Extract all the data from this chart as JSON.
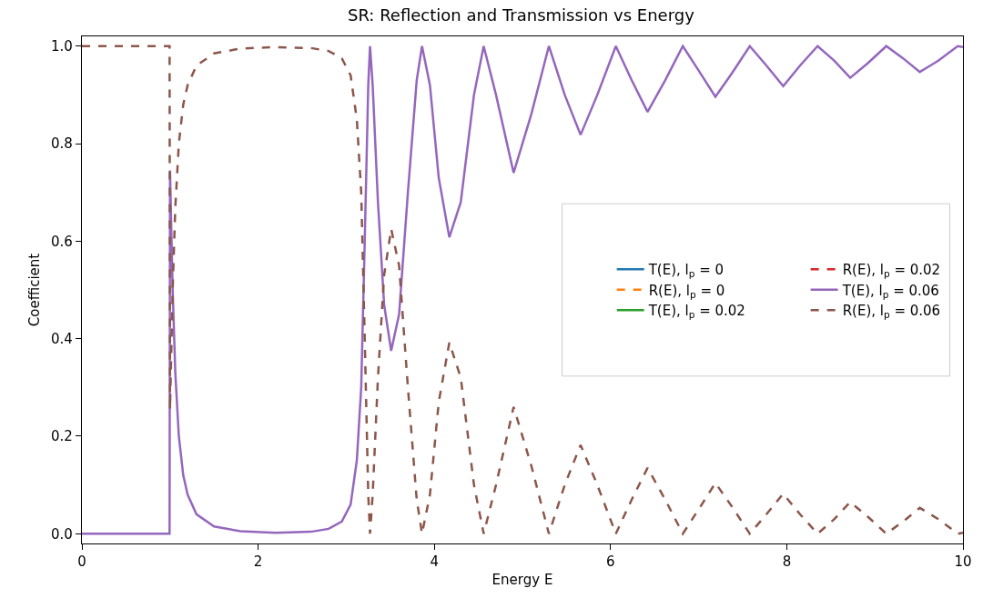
{
  "chart_data": {
    "type": "line",
    "title": "SR: Reflection and Transmission vs Energy",
    "xlabel": "Energy E",
    "ylabel": "Coefficient",
    "x": [
      0,
      0.995,
      1.0,
      1.03,
      1.06,
      1.1,
      1.15,
      1.2,
      1.3,
      1.5,
      1.8,
      2.2,
      2.6,
      2.8,
      2.95,
      3.05,
      3.12,
      3.17,
      3.21,
      3.25,
      3.27,
      3.3,
      3.36,
      3.43,
      3.51,
      3.6,
      3.7,
      3.8,
      3.86,
      3.95,
      4.05,
      4.17,
      4.3,
      4.45,
      4.56,
      4.7,
      4.9,
      5.1,
      5.3,
      5.48,
      5.66,
      5.85,
      6.06,
      6.24,
      6.42,
      6.62,
      6.82,
      7.0,
      7.19,
      7.38,
      7.58,
      7.77,
      7.96,
      8.15,
      8.35,
      8.54,
      8.72,
      8.92,
      9.13,
      9.32,
      9.51,
      9.72,
      9.94,
      10
    ],
    "series": [
      {
        "name": "T(E), l$_{p}$ = 0",
        "color": "#1f77b4",
        "line_style": "solid",
        "values": [
          null,
          null,
          null,
          null,
          null,
          null,
          null,
          null,
          null,
          null,
          null,
          null,
          null,
          null,
          null,
          null,
          null,
          null,
          null,
          null,
          null,
          null,
          null,
          null,
          null,
          null,
          null,
          null,
          null,
          null,
          null,
          null,
          null,
          null,
          null,
          null,
          null,
          null,
          null,
          null,
          null,
          null,
          null,
          null,
          null,
          null,
          null,
          null,
          null,
          null,
          null,
          null,
          null,
          null,
          null,
          null,
          null,
          null,
          null,
          null,
          null,
          null,
          null,
          null
        ]
      },
      {
        "name": "R(E), l$_{p}$ = 0",
        "color": "#ff7f0e",
        "line_style": "dashed",
        "values": [
          null,
          null,
          null,
          null,
          null,
          null,
          null,
          null,
          null,
          null,
          null,
          null,
          null,
          null,
          null,
          null,
          null,
          null,
          null,
          null,
          null,
          null,
          null,
          null,
          null,
          null,
          null,
          null,
          null,
          null,
          null,
          null,
          null,
          null,
          null,
          null,
          null,
          null,
          null,
          null,
          null,
          null,
          null,
          null,
          null,
          null,
          null,
          null,
          null,
          null,
          null,
          null,
          null,
          null,
          null,
          null,
          null,
          null,
          null,
          null,
          null,
          null,
          null,
          null
        ]
      },
      {
        "name": "T(E), l$_{p}$ = 0.02",
        "color": "#2ca02c",
        "line_style": "solid",
        "values": [
          null,
          null,
          null,
          null,
          null,
          null,
          null,
          null,
          null,
          null,
          null,
          null,
          null,
          null,
          null,
          null,
          null,
          null,
          null,
          null,
          null,
          null,
          null,
          null,
          null,
          null,
          null,
          null,
          null,
          null,
          null,
          null,
          null,
          null,
          null,
          null,
          null,
          null,
          null,
          null,
          null,
          null,
          null,
          null,
          null,
          null,
          null,
          null,
          null,
          null,
          null,
          null,
          null,
          null,
          null,
          null,
          null,
          null,
          null,
          null,
          null,
          null,
          null,
          null
        ]
      },
      {
        "name": "R(E), l$_{p}$ = 0.02",
        "color": "#d62728",
        "line_style": "dashed",
        "values": [
          null,
          null,
          null,
          null,
          null,
          null,
          null,
          null,
          null,
          null,
          null,
          null,
          null,
          null,
          null,
          null,
          null,
          null,
          null,
          null,
          null,
          null,
          null,
          null,
          null,
          null,
          null,
          null,
          null,
          null,
          null,
          null,
          null,
          null,
          null,
          null,
          null,
          null,
          null,
          null,
          null,
          null,
          null,
          null,
          null,
          null,
          null,
          null,
          null,
          null,
          null,
          null,
          null,
          null,
          null,
          null,
          null,
          null,
          null,
          null,
          null,
          null,
          null,
          null
        ]
      },
      {
        "name": "T(E), l$_{p}$ = 0.06",
        "color": "#9467bd",
        "line_style": "solid",
        "values": [
          0,
          0,
          0.745,
          0.5,
          0.33,
          0.2,
          0.12,
          0.08,
          0.04,
          0.015,
          0.005,
          0.002,
          0.004,
          0.01,
          0.025,
          0.06,
          0.15,
          0.3,
          0.6,
          0.92,
          1.0,
          0.92,
          0.68,
          0.47,
          0.375,
          0.45,
          0.7,
          0.93,
          1.0,
          0.92,
          0.73,
          0.608,
          0.68,
          0.9,
          1.0,
          0.9,
          0.74,
          0.86,
          1.0,
          0.9,
          0.818,
          0.9,
          1.0,
          0.93,
          0.865,
          0.93,
          1.0,
          0.95,
          0.896,
          0.945,
          1.0,
          0.96,
          0.918,
          0.96,
          1.0,
          0.97,
          0.935,
          0.965,
          1.0,
          0.975,
          0.947,
          0.97,
          1.0,
          0.998
        ]
      },
      {
        "name": "R(E), l$_{p}$ = 0.06",
        "color": "#8c564b",
        "line_style": "dashed",
        "values": [
          1,
          1,
          0.255,
          0.5,
          0.67,
          0.8,
          0.88,
          0.92,
          0.96,
          0.985,
          0.995,
          0.998,
          0.996,
          0.99,
          0.975,
          0.94,
          0.85,
          0.7,
          0.4,
          0.08,
          0.0,
          0.08,
          0.32,
          0.53,
          0.625,
          0.55,
          0.3,
          0.07,
          0.0,
          0.08,
          0.27,
          0.392,
          0.32,
          0.1,
          0.0,
          0.1,
          0.26,
          0.14,
          0.0,
          0.1,
          0.182,
          0.1,
          0.0,
          0.07,
          0.135,
          0.07,
          0.0,
          0.05,
          0.104,
          0.055,
          0.0,
          0.04,
          0.082,
          0.04,
          0.0,
          0.03,
          0.065,
          0.035,
          0.0,
          0.025,
          0.053,
          0.03,
          0.0,
          0.002
        ]
      }
    ],
    "xlim": [
      0,
      10
    ],
    "xticks": [
      0,
      2,
      4,
      6,
      8,
      10
    ],
    "ylim": [
      -0.02,
      1.02
    ],
    "yticks": [
      {
        "value": 0,
        "label": "0.0"
      },
      {
        "value": 0.2,
        "label": "0.2"
      },
      {
        "value": 0.4,
        "label": "0.4"
      },
      {
        "value": 0.6,
        "label": "0.6"
      },
      {
        "value": 0.8,
        "label": "0.8"
      },
      {
        "value": 1.0,
        "label": "1.0"
      }
    ],
    "legend": "center right",
    "grid": false,
    "marker": "none"
  }
}
